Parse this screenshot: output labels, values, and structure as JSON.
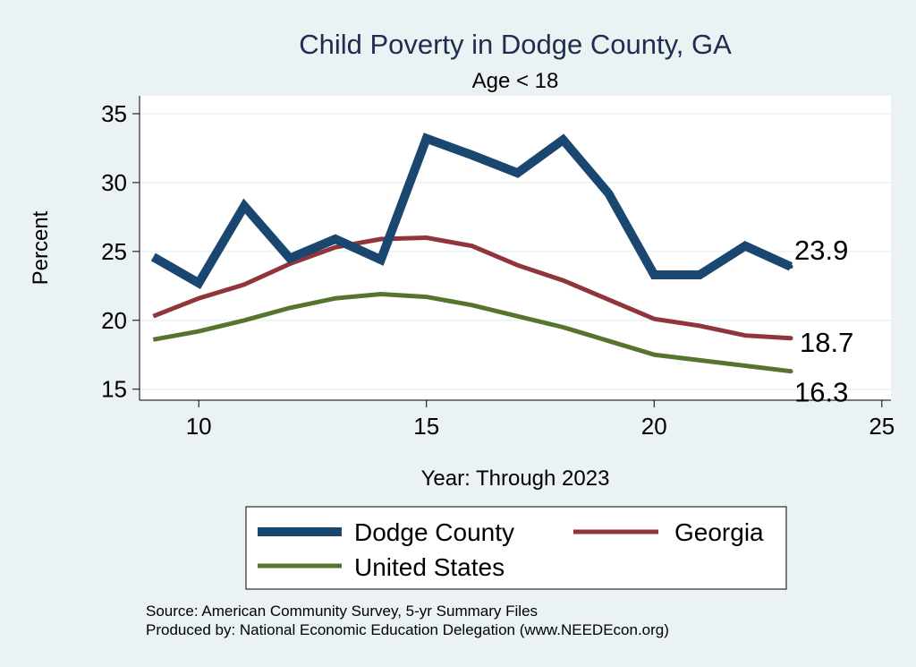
{
  "chart_data": {
    "type": "line",
    "title": "Child Poverty in Dodge County, GA",
    "subtitle": "Age < 18",
    "xlabel": "Year: Through 2023",
    "ylabel": "Percent",
    "xlim": [
      8.7,
      25.2
    ],
    "ylim": [
      14.2,
      36.3
    ],
    "x_ticks": [
      10,
      15,
      20,
      25
    ],
    "y_ticks": [
      15,
      20,
      25,
      30,
      35
    ],
    "grid": true,
    "legend_position": "bottom",
    "x": [
      9,
      10,
      11,
      12,
      13,
      14,
      15,
      16,
      17,
      18,
      19,
      20,
      21,
      22,
      23
    ],
    "series": [
      {
        "name": "Dodge County",
        "color": "#1a476f",
        "values": [
          24.6,
          22.7,
          28.3,
          24.5,
          25.9,
          24.4,
          33.2,
          32.0,
          30.7,
          33.1,
          29.2,
          23.3,
          23.3,
          25.4,
          23.9
        ],
        "end_label": "23.9"
      },
      {
        "name": "Georgia",
        "color": "#90353b",
        "values": [
          20.3,
          21.6,
          22.6,
          24.1,
          25.3,
          25.9,
          26.0,
          25.4,
          24.0,
          22.9,
          21.5,
          20.1,
          19.6,
          18.9,
          18.7
        ],
        "end_label": "18.7"
      },
      {
        "name": "United States",
        "color": "#55752f",
        "values": [
          18.6,
          19.2,
          20.0,
          20.9,
          21.6,
          21.9,
          21.7,
          21.1,
          20.3,
          19.5,
          18.5,
          17.5,
          17.1,
          16.7,
          16.3
        ],
        "end_label": "16.3"
      }
    ]
  },
  "notes": {
    "source": "Source: American Community Survey, 5-yr Summary Files",
    "produced_by": "Produced by: National Economic Education Delegation (www.NEEDEcon.org)"
  }
}
